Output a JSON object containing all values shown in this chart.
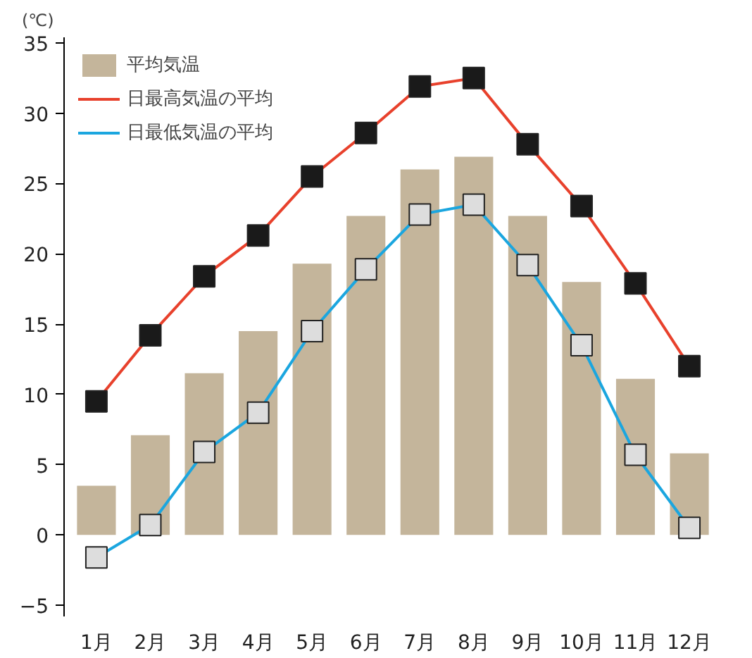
{
  "chart_data": {
    "type": "bar",
    "ylabel": "(℃)",
    "categories": [
      "1月",
      "2月",
      "3月",
      "4月",
      "5月",
      "6月",
      "7月",
      "8月",
      "9月",
      "10月",
      "11月",
      "12月"
    ],
    "series": [
      {
        "name": "平均気温",
        "color": "#c4b59b",
        "values": [
          3.5,
          7.1,
          11.5,
          14.5,
          19.3,
          22.7,
          26.0,
          26.9,
          22.7,
          18.0,
          11.1,
          5.8
        ]
      },
      {
        "name": "日最高気温の平均",
        "type": "line",
        "color": "#e8412c",
        "values": [
          9.5,
          14.2,
          18.4,
          21.3,
          25.5,
          28.6,
          31.9,
          32.5,
          27.8,
          23.4,
          17.9,
          12.0
        ]
      },
      {
        "name": "日最低気温の平均",
        "type": "line",
        "color": "#1ba6df",
        "values": [
          -1.6,
          0.7,
          5.9,
          8.7,
          14.5,
          18.9,
          22.8,
          23.5,
          19.2,
          13.5,
          5.7,
          0.5
        ]
      }
    ],
    "ylim": [
      -5.8,
      35.4
    ],
    "yticks": [
      -5,
      0,
      5,
      10,
      15,
      20,
      25,
      30,
      35
    ],
    "grid": false,
    "legend": "top left",
    "marker": "square",
    "line_style": "solid"
  }
}
